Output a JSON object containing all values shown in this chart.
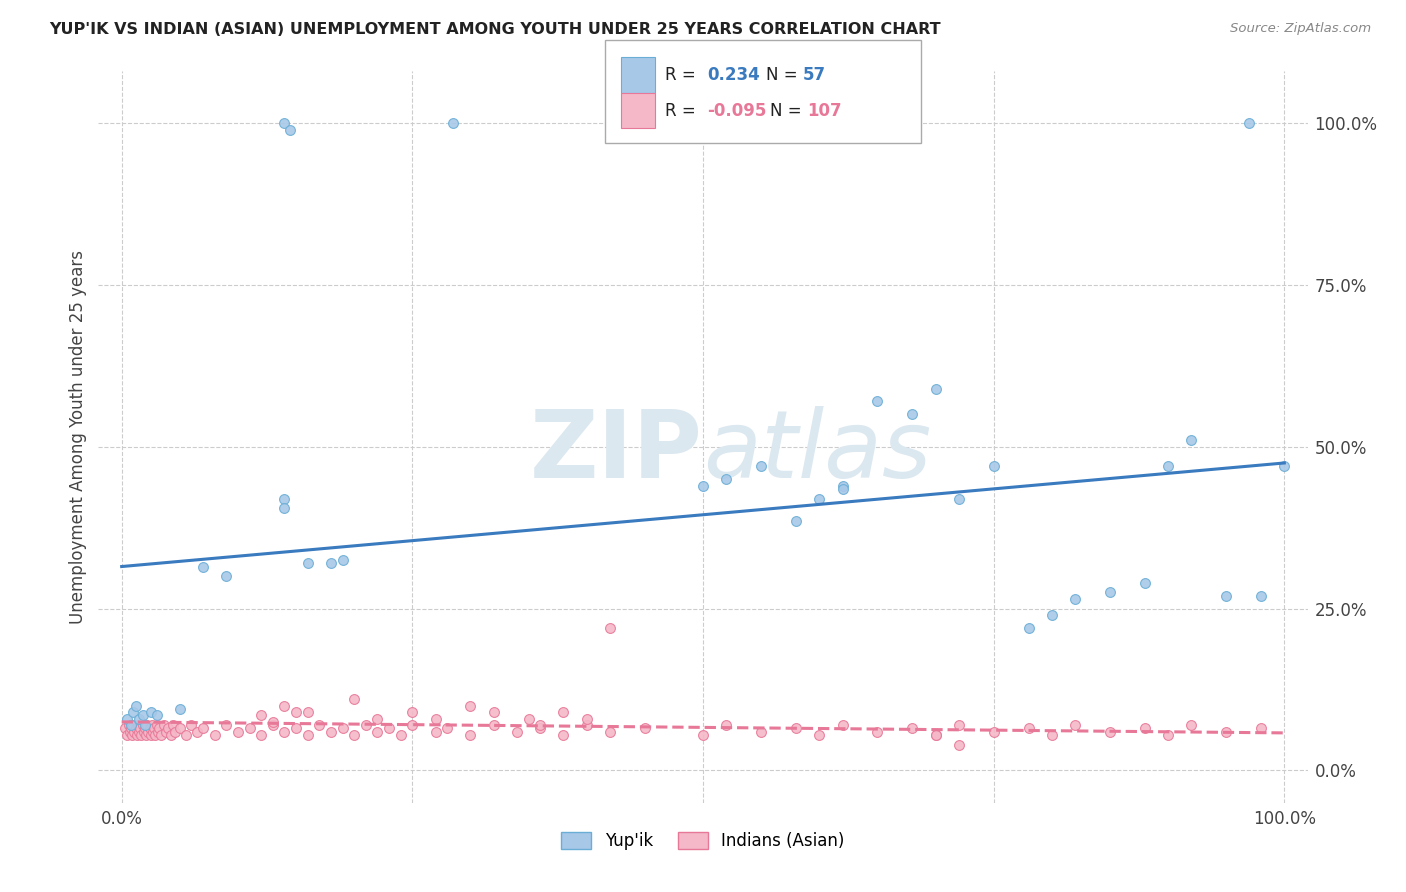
{
  "title": "YUP'IK VS INDIAN (ASIAN) UNEMPLOYMENT AMONG YOUTH UNDER 25 YEARS CORRELATION CHART",
  "source": "Source: ZipAtlas.com",
  "ylabel": "Unemployment Among Youth under 25 years",
  "xlim": [
    -0.02,
    1.02
  ],
  "ylim": [
    -0.05,
    1.08
  ],
  "ytick_vals": [
    0.0,
    0.25,
    0.5,
    0.75,
    1.0
  ],
  "ytick_labels": [
    "0.0%",
    "25.0%",
    "50.0%",
    "75.0%",
    "100.0%"
  ],
  "color_blue": "#a8c8e8",
  "color_blue_edge": "#6aaed6",
  "color_pink": "#f4b8c8",
  "color_pink_edge": "#e87898",
  "color_blue_line": "#3a7abf",
  "color_pink_line": "#e87898",
  "background_color": "#ffffff",
  "watermark_color": "#dce8f0",
  "yupik_x": [
    0.005,
    0.008,
    0.01,
    0.012,
    0.015,
    0.018,
    0.02,
    0.025,
    0.03,
    0.05,
    0.07,
    0.09,
    0.14,
    0.14,
    0.16,
    0.18,
    0.19,
    0.5,
    0.52,
    0.55,
    0.58,
    0.6,
    0.62,
    0.62,
    0.65,
    0.68,
    0.7,
    0.72,
    0.75,
    0.78,
    0.8,
    0.82,
    0.85,
    0.88,
    0.9,
    0.92,
    0.95,
    0.98,
    1.0,
    0.14,
    0.145,
    0.285,
    0.97
  ],
  "yupik_y": [
    0.08,
    0.07,
    0.09,
    0.1,
    0.08,
    0.085,
    0.07,
    0.09,
    0.085,
    0.095,
    0.315,
    0.3,
    0.42,
    0.405,
    0.32,
    0.32,
    0.325,
    0.44,
    0.45,
    0.47,
    0.385,
    0.42,
    0.44,
    0.435,
    0.57,
    0.55,
    0.59,
    0.42,
    0.47,
    0.22,
    0.24,
    0.265,
    0.275,
    0.29,
    0.47,
    0.51,
    0.27,
    0.27,
    0.47,
    1.0,
    0.99,
    1.0,
    1.0
  ],
  "indian_x": [
    0.003,
    0.005,
    0.006,
    0.007,
    0.008,
    0.009,
    0.01,
    0.011,
    0.012,
    0.013,
    0.014,
    0.015,
    0.016,
    0.017,
    0.018,
    0.019,
    0.02,
    0.021,
    0.022,
    0.023,
    0.024,
    0.025,
    0.026,
    0.027,
    0.028,
    0.029,
    0.03,
    0.031,
    0.032,
    0.034,
    0.036,
    0.038,
    0.04,
    0.042,
    0.044,
    0.046,
    0.05,
    0.055,
    0.06,
    0.065,
    0.07,
    0.08,
    0.09,
    0.1,
    0.11,
    0.12,
    0.13,
    0.14,
    0.15,
    0.16,
    0.17,
    0.18,
    0.19,
    0.2,
    0.21,
    0.22,
    0.23,
    0.24,
    0.25,
    0.27,
    0.28,
    0.3,
    0.32,
    0.34,
    0.36,
    0.38,
    0.4,
    0.42,
    0.45,
    0.5,
    0.52,
    0.55,
    0.58,
    0.6,
    0.62,
    0.65,
    0.68,
    0.7,
    0.72,
    0.75,
    0.78,
    0.8,
    0.82,
    0.85,
    0.88,
    0.9,
    0.92,
    0.95,
    0.98,
    0.14,
    0.15,
    0.2,
    0.22,
    0.25,
    0.27,
    0.3,
    0.32,
    0.35,
    0.36,
    0.38,
    0.4,
    0.12,
    0.13,
    0.16,
    0.42,
    0.7,
    0.72
  ],
  "indian_y": [
    0.065,
    0.055,
    0.07,
    0.06,
    0.065,
    0.055,
    0.07,
    0.06,
    0.065,
    0.055,
    0.07,
    0.06,
    0.065,
    0.055,
    0.07,
    0.06,
    0.065,
    0.055,
    0.07,
    0.06,
    0.065,
    0.055,
    0.07,
    0.06,
    0.065,
    0.055,
    0.07,
    0.06,
    0.065,
    0.055,
    0.07,
    0.06,
    0.065,
    0.055,
    0.07,
    0.06,
    0.065,
    0.055,
    0.07,
    0.06,
    0.065,
    0.055,
    0.07,
    0.06,
    0.065,
    0.055,
    0.07,
    0.06,
    0.065,
    0.055,
    0.07,
    0.06,
    0.065,
    0.055,
    0.07,
    0.06,
    0.065,
    0.055,
    0.07,
    0.06,
    0.065,
    0.055,
    0.07,
    0.06,
    0.065,
    0.055,
    0.07,
    0.06,
    0.065,
    0.055,
    0.07,
    0.06,
    0.065,
    0.055,
    0.07,
    0.06,
    0.065,
    0.055,
    0.07,
    0.06,
    0.065,
    0.055,
    0.07,
    0.06,
    0.065,
    0.055,
    0.07,
    0.06,
    0.065,
    0.1,
    0.09,
    0.11,
    0.08,
    0.09,
    0.08,
    0.1,
    0.09,
    0.08,
    0.07,
    0.09,
    0.08,
    0.085,
    0.075,
    0.09,
    0.22,
    0.055,
    0.04
  ],
  "reg_yupik": [
    0.315,
    0.475
  ],
  "reg_indian": [
    0.075,
    0.058
  ],
  "marker_size": 50
}
